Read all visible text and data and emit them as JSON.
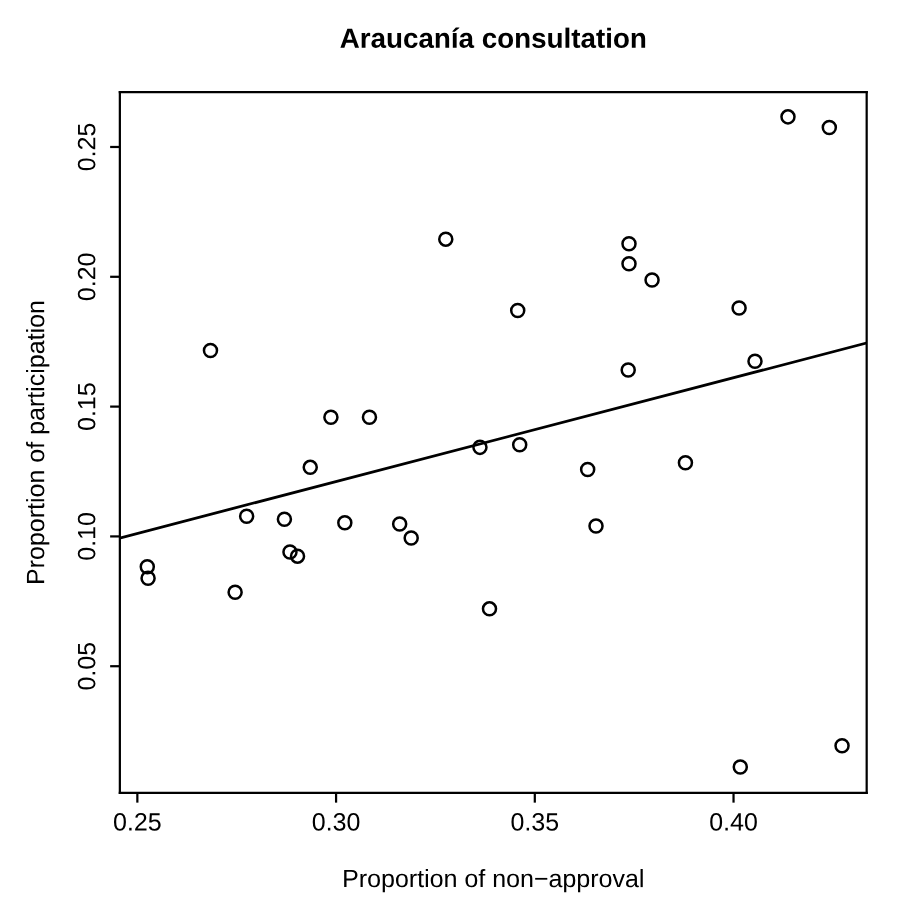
{
  "chart_data": {
    "type": "scatter",
    "title": "Araucanía consultation",
    "xlabel": "Proportion of non−approval",
    "ylabel": "Proportion of participation",
    "xlim": [
      0.2456,
      0.4335
    ],
    "ylim": [
      0.0012,
      0.2711
    ],
    "xticks": [
      {
        "value": 0.25,
        "label": "0.25"
      },
      {
        "value": 0.3,
        "label": "0.30"
      },
      {
        "value": 0.35,
        "label": "0.35"
      },
      {
        "value": 0.4,
        "label": "0.40"
      }
    ],
    "yticks": [
      {
        "value": 0.05,
        "label": "0.05"
      },
      {
        "value": 0.1,
        "label": "0.10"
      },
      {
        "value": 0.15,
        "label": "0.15"
      },
      {
        "value": 0.2,
        "label": "0.20"
      },
      {
        "value": 0.25,
        "label": "0.25"
      }
    ],
    "grid": false,
    "series": [
      {
        "color": "#000000",
        "marker": "circle",
        "x": [
          0.3276,
          0.2684,
          0.2987,
          0.3084,
          0.2935,
          0.2775,
          0.287,
          0.3022,
          0.316,
          0.3189,
          0.2884,
          0.2903,
          0.2525,
          0.2527,
          0.2746,
          0.4137,
          0.3737,
          0.3737,
          0.3795,
          0.3457,
          0.4014,
          0.3735,
          0.4054,
          0.3362,
          0.3462,
          0.3633,
          0.3879,
          0.3654,
          0.3386,
          0.4017,
          0.4241,
          0.4273
        ],
        "values": [
          0.2145,
          0.1716,
          0.1459,
          0.1459,
          0.1266,
          0.1078,
          0.1066,
          0.1053,
          0.1048,
          0.0994,
          0.094,
          0.0924,
          0.0883,
          0.0839,
          0.0785,
          0.2616,
          0.2127,
          0.205,
          0.1988,
          0.187,
          0.188,
          0.1641,
          0.1675,
          0.1343,
          0.1353,
          0.1258,
          0.1284,
          0.104,
          0.0721,
          0.0112,
          0.2575,
          0.0194
        ]
      },
      {
        "type": "line",
        "color": "#000000",
        "line_style": "solid",
        "marker": "none",
        "x": [
          0.2456,
          0.4335
        ],
        "values": [
          0.0994,
          0.1745
        ]
      }
    ]
  }
}
